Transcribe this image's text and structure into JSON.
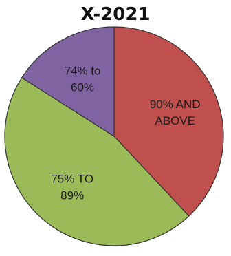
{
  "chart_data": {
    "type": "pie",
    "title": "X-2021",
    "slices": [
      {
        "label": [
          "90% AND",
          "ABOVE"
        ],
        "value": 38,
        "color": "#c0504d"
      },
      {
        "label": [
          "75% TO",
          "89%"
        ],
        "value": 46,
        "color": "#9bbb59"
      },
      {
        "label": [
          "74% to",
          "60%"
        ],
        "value": 16,
        "color": "#8064a2"
      }
    ],
    "start_angle_deg": 0,
    "direction": "clockwise",
    "legend": "none"
  }
}
